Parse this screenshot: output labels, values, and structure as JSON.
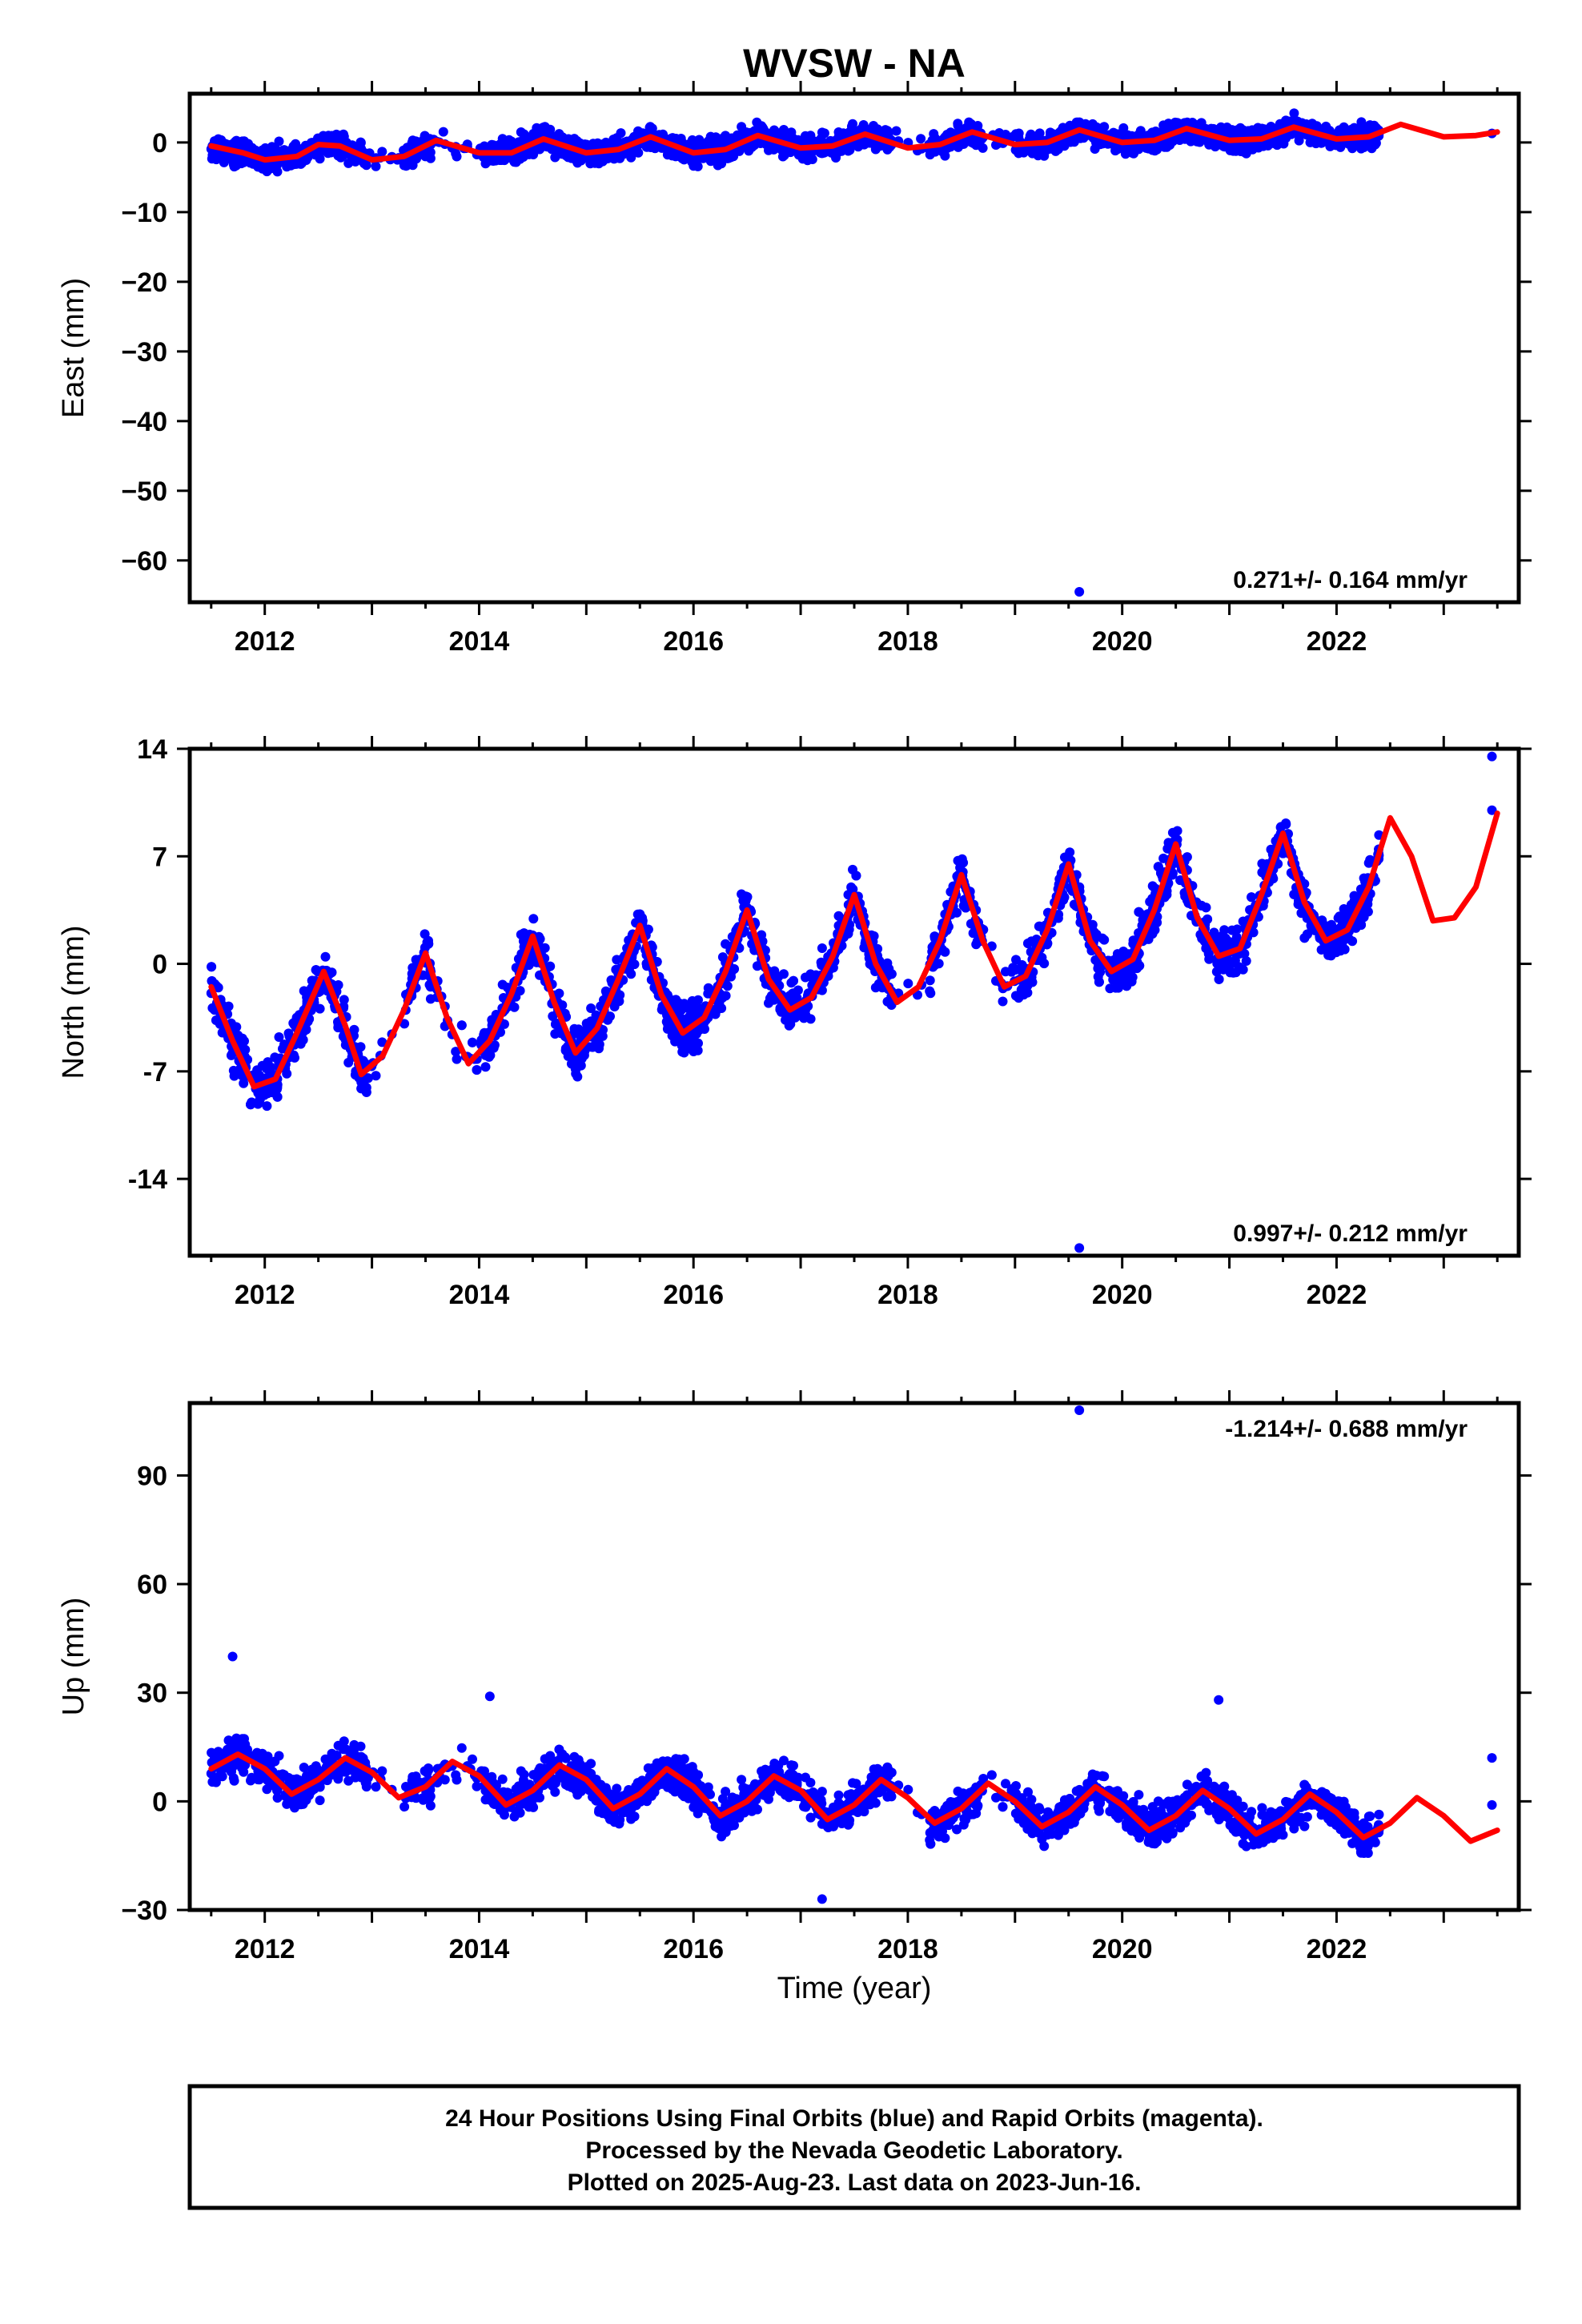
{
  "title": "WVSW - NA",
  "xlabel": "Time (year)",
  "footer": {
    "lines": [
      "24 Hour Positions Using Final Orbits (blue) and Rapid Orbits (magenta).",
      "Processed by the Nevada Geodetic Laboratory.",
      "Plotted on 2025-Aug-23. Last data on 2023-Jun-16."
    ]
  },
  "colors": {
    "points": "#0000ff",
    "model": "#ff0000",
    "frame": "#000000"
  },
  "chart_data": [
    {
      "type": "scatter",
      "name": "east",
      "ylabel": "East (mm)",
      "xlim": [
        2011.3,
        2023.7
      ],
      "ylim": [
        -66,
        7
      ],
      "x_ticks": [
        2012,
        2014,
        2016,
        2018,
        2020,
        2022
      ],
      "y_ticks": [
        0,
        -10,
        -20,
        -30,
        -40,
        -50,
        -60
      ],
      "y_tick_labels": [
        "0",
        "−10",
        "−20",
        "−30",
        "−40",
        "−50",
        "−60"
      ],
      "rate": "0.271+/- 0.164 mm/yr",
      "rate_position": "bottom-right",
      "data_span": [
        2011.5,
        2022.4
      ],
      "model": {
        "x": [
          2011.5,
          2011.8,
          2012.0,
          2012.3,
          2012.5,
          2012.7,
          2013.0,
          2013.3,
          2013.6,
          2014.0,
          2014.3,
          2014.6,
          2015.0,
          2015.3,
          2015.6,
          2016.0,
          2016.3,
          2016.6,
          2017.0,
          2017.3,
          2017.6,
          2018.0,
          2018.3,
          2018.6,
          2019.0,
          2019.3,
          2019.6,
          2020.0,
          2020.3,
          2020.6,
          2021.0,
          2021.3,
          2021.6,
          2022.0,
          2022.3,
          2022.6,
          2023.0,
          2023.3,
          2023.5
        ],
        "y": [
          -0.5,
          -1.5,
          -2.5,
          -2.0,
          -0.3,
          -0.5,
          -2.5,
          -2.0,
          0.3,
          -1.5,
          -1.5,
          0.5,
          -1.5,
          -1.0,
          0.8,
          -1.5,
          -1.0,
          1.0,
          -0.8,
          -0.5,
          1.2,
          -0.8,
          -0.3,
          1.5,
          -0.3,
          0.0,
          1.8,
          0.0,
          0.3,
          2.0,
          0.3,
          0.5,
          2.2,
          0.5,
          0.8,
          2.6,
          0.8,
          1.0,
          1.5
        ]
      },
      "outliers": [
        {
          "x": 2019.6,
          "y": -64.5
        },
        {
          "x": 2023.45,
          "y": 1.3
        }
      ]
    },
    {
      "type": "scatter",
      "name": "north",
      "ylabel": "North (mm)",
      "xlim": [
        2011.3,
        2023.7
      ],
      "ylim": [
        -19,
        14
      ],
      "x_ticks": [
        2012,
        2014,
        2016,
        2018,
        2020,
        2022
      ],
      "y_ticks": [
        14,
        7,
        0,
        -7,
        -14
      ],
      "y_tick_labels": [
        "14",
        "7",
        "0",
        "-7",
        "-14"
      ],
      "rate": "0.997+/- 0.212 mm/yr",
      "rate_position": "bottom-right",
      "data_span": [
        2011.5,
        2022.4
      ],
      "model": {
        "x": [
          2011.5,
          2011.7,
          2011.9,
          2012.1,
          2012.3,
          2012.55,
          2012.75,
          2012.9,
          2013.1,
          2013.3,
          2013.5,
          2013.7,
          2013.9,
          2014.1,
          2014.3,
          2014.5,
          2014.7,
          2014.9,
          2015.1,
          2015.3,
          2015.5,
          2015.7,
          2015.9,
          2016.1,
          2016.3,
          2016.5,
          2016.7,
          2016.9,
          2017.1,
          2017.3,
          2017.5,
          2017.7,
          2017.9,
          2018.1,
          2018.3,
          2018.5,
          2018.7,
          2018.9,
          2019.1,
          2019.3,
          2019.5,
          2019.7,
          2019.9,
          2020.1,
          2020.3,
          2020.5,
          2020.7,
          2020.9,
          2021.1,
          2021.3,
          2021.5,
          2021.7,
          2021.9,
          2022.1,
          2022.3,
          2022.5,
          2022.7,
          2022.9,
          2023.1,
          2023.3,
          2023.5
        ],
        "y": [
          -1.5,
          -5.0,
          -8.0,
          -7.5,
          -4.5,
          -0.5,
          -4.0,
          -7.2,
          -6.0,
          -3.0,
          0.7,
          -3.5,
          -6.5,
          -5.0,
          -2.0,
          1.8,
          -2.5,
          -5.8,
          -4.2,
          -1.0,
          2.5,
          -2.0,
          -4.5,
          -3.5,
          -0.5,
          3.5,
          -1.0,
          -3.0,
          -2.2,
          0.5,
          4.5,
          0.0,
          -2.5,
          -1.5,
          1.5,
          5.8,
          1.5,
          -1.5,
          -0.8,
          2.2,
          6.5,
          1.5,
          -0.5,
          0.3,
          3.5,
          7.8,
          3.0,
          0.5,
          1.0,
          4.5,
          8.5,
          4.0,
          1.5,
          2.2,
          5.0,
          9.5,
          7.0,
          2.8,
          3.0,
          5.0,
          9.8
        ]
      },
      "outliers": [
        {
          "x": 2019.6,
          "y": -18.5
        },
        {
          "x": 2023.45,
          "y": 13.5
        },
        {
          "x": 2023.45,
          "y": 10.0
        }
      ]
    },
    {
      "type": "scatter",
      "name": "up",
      "ylabel": "Up (mm)",
      "xlim": [
        2011.3,
        2023.7
      ],
      "ylim": [
        -30,
        110
      ],
      "x_ticks": [
        2012,
        2014,
        2016,
        2018,
        2020,
        2022
      ],
      "y_ticks": [
        90,
        60,
        30,
        0,
        -30
      ],
      "y_tick_labels": [
        "90",
        "60",
        "30",
        "0",
        "−30"
      ],
      "rate": "-1.214+/- 0.688 mm/yr",
      "rate_position": "top-right",
      "data_span": [
        2011.5,
        2022.4
      ],
      "model": {
        "x": [
          2011.5,
          2011.75,
          2012.0,
          2012.25,
          2012.5,
          2012.75,
          2013.0,
          2013.25,
          2013.5,
          2013.75,
          2014.0,
          2014.25,
          2014.5,
          2014.75,
          2015.0,
          2015.25,
          2015.5,
          2015.75,
          2016.0,
          2016.25,
          2016.5,
          2016.75,
          2017.0,
          2017.25,
          2017.5,
          2017.75,
          2018.0,
          2018.25,
          2018.5,
          2018.75,
          2019.0,
          2019.25,
          2019.5,
          2019.75,
          2020.0,
          2020.25,
          2020.5,
          2020.75,
          2021.0,
          2021.25,
          2021.5,
          2021.75,
          2022.0,
          2022.25,
          2022.5,
          2022.75,
          2023.0,
          2023.25,
          2023.5
        ],
        "y": [
          9,
          13,
          9,
          2,
          6,
          12,
          8,
          1,
          4,
          11,
          7,
          -1,
          3,
          10,
          6,
          -2,
          2,
          9,
          4,
          -4,
          0,
          7,
          3,
          -5,
          -1,
          6,
          1,
          -6,
          -2,
          5,
          0,
          -7,
          -3,
          4,
          -1,
          -8,
          -4,
          3,
          -2,
          -9,
          -5,
          2,
          -3,
          -10,
          -6,
          1,
          -4,
          -11,
          -8
        ]
      },
      "outliers": [
        {
          "x": 2019.6,
          "y": 108
        },
        {
          "x": 2011.7,
          "y": 40
        },
        {
          "x": 2014.1,
          "y": 29
        },
        {
          "x": 2020.9,
          "y": 28
        },
        {
          "x": 2017.2,
          "y": -27
        },
        {
          "x": 2023.45,
          "y": 12
        },
        {
          "x": 2023.45,
          "y": -1
        }
      ]
    }
  ]
}
